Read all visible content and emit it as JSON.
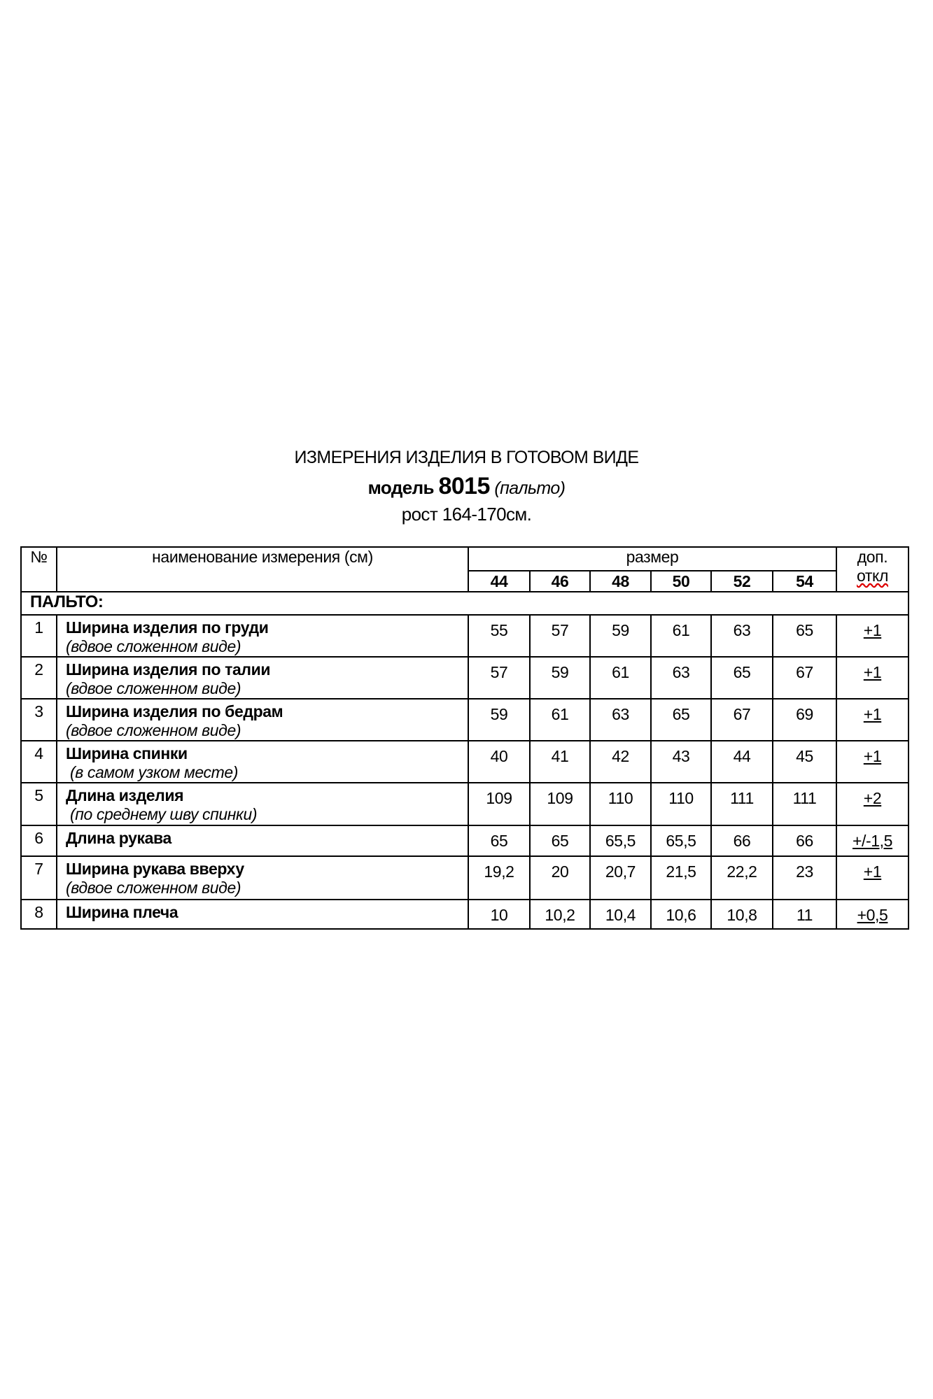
{
  "title": "ИЗМЕРЕНИЯ ИЗДЕЛИЯ В ГОТОВОМ ВИДЕ",
  "model_label": "модель",
  "model_number": "8015",
  "model_type": "(пальто)",
  "height": "рост 164-170см.",
  "table": {
    "col_no": "№",
    "col_name": "наименование измерения (см)",
    "col_size": "размер",
    "col_tol_1": "доп.",
    "col_tol_2": "откл",
    "sizes": [
      "44",
      "46",
      "48",
      "50",
      "52",
      "54"
    ],
    "section": "ПАЛЬТО:",
    "rows": [
      {
        "no": "1",
        "name": "Ширина изделия по груди",
        "note": "(вдвое сложенном виде)",
        "values": [
          "55",
          "57",
          "59",
          "61",
          "63",
          "65"
        ],
        "tol": "+1"
      },
      {
        "no": "2",
        "name": "Ширина изделия по талии",
        "note": "(вдвое сложенном виде)",
        "values": [
          "57",
          "59",
          "61",
          "63",
          "65",
          "67"
        ],
        "tol": "+1"
      },
      {
        "no": "3",
        "name": "Ширина изделия по бедрам",
        "note": "(вдвое сложенном виде)",
        "values": [
          "59",
          "61",
          "63",
          "65",
          "67",
          "69"
        ],
        "tol": "+1"
      },
      {
        "no": "4",
        "name": "Ширина спинки",
        "note": " (в самом узком месте)",
        "values": [
          "40",
          "41",
          "42",
          "43",
          "44",
          "45"
        ],
        "tol": "+1"
      },
      {
        "no": "5",
        "name": "Длина изделия",
        "note": " (по среднему шву спинки)",
        "values": [
          "109",
          "109",
          "110",
          "110",
          "111",
          "111"
        ],
        "tol": "+2"
      },
      {
        "no": "6",
        "name": "Длина рукава",
        "note": "",
        "values": [
          "65",
          "65",
          "65,5",
          "65,5",
          "66",
          "66"
        ],
        "tol": "+/-1,5"
      },
      {
        "no": "7",
        "name": "Ширина рукава вверху",
        "note": "(вдвое сложенном виде)",
        "values": [
          "19,2",
          "20",
          "20,7",
          "21,5",
          "22,2",
          "23"
        ],
        "tol": "+1"
      },
      {
        "no": "8",
        "name": "Ширина плеча",
        "note": "",
        "values": [
          "10",
          "10,2",
          "10,4",
          "10,6",
          "10,8",
          "11"
        ],
        "tol": "+0,5"
      }
    ]
  }
}
